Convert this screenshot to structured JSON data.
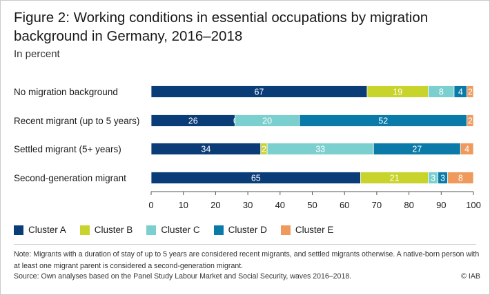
{
  "header": {
    "title": "Figure 2: Working conditions in essential occupations by migration background in Germany, 2016–2018",
    "subtitle": "In percent"
  },
  "chart_data": {
    "type": "bar",
    "orientation": "horizontal",
    "stacked": true,
    "categories": [
      "No migration background",
      "Recent migrant (up to 5 years)",
      "Settled migrant (5+ years)",
      "Second-generation migrant"
    ],
    "series": [
      {
        "name": "Cluster A",
        "color": "#0a3c78",
        "values": [
          67,
          26,
          34,
          65
        ]
      },
      {
        "name": "Cluster B",
        "color": "#c8d32c",
        "values": [
          19,
          0,
          2,
          21
        ]
      },
      {
        "name": "Cluster C",
        "color": "#7ccfcf",
        "values": [
          8,
          20,
          33,
          3
        ]
      },
      {
        "name": "Cluster D",
        "color": "#0a7ba8",
        "values": [
          4,
          52,
          27,
          3
        ]
      },
      {
        "name": "Cluster E",
        "color": "#ef9a5c",
        "values": [
          2,
          2,
          4,
          8
        ]
      }
    ],
    "xlim": [
      0,
      100
    ],
    "xticks": [
      "0",
      "10",
      "20",
      "30",
      "40",
      "50",
      "60",
      "70",
      "80",
      "90",
      "100"
    ],
    "grid": false,
    "legend_position": "bottom"
  },
  "footer": {
    "note": "Note: Migrants with a duration of stay of up to 5 years are considered recent migrants, and settled migrants otherwise. A native-born person with at least one migrant parent is considered a second-generation migrant.",
    "source": "Source: Own analyses based on the Panel Study Labour Market and Social Security, waves 2016–2018.",
    "copyright": "© IAB"
  }
}
